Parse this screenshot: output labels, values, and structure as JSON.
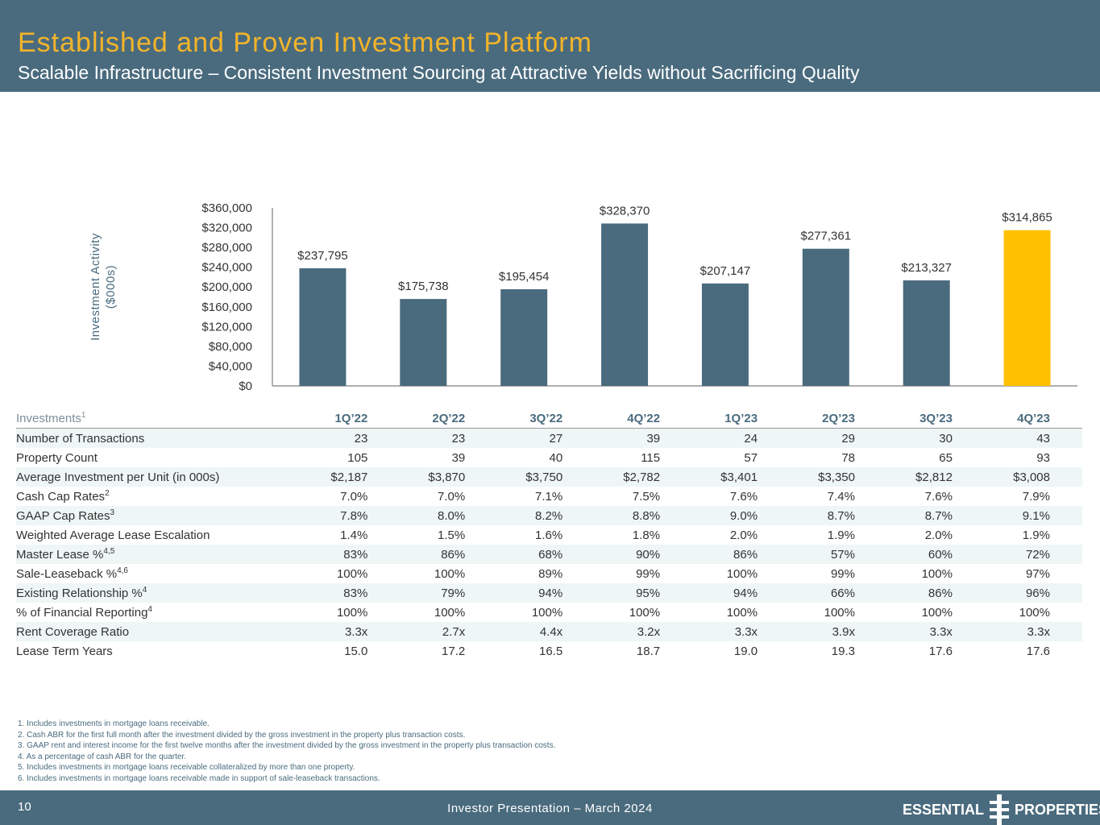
{
  "header": {
    "title": "Established and Proven Investment Platform",
    "subtitle": "Scalable Infrastructure – Consistent Investment Sourcing at Attractive Yields without Sacrificing Quality"
  },
  "chart_data": {
    "type": "bar",
    "categories": [
      "1Q'22",
      "2Q'22",
      "3Q'22",
      "4Q'22",
      "1Q'23",
      "2Q'23",
      "3Q'23",
      "4Q'23"
    ],
    "values": [
      237795,
      175738,
      195454,
      328370,
      207147,
      277361,
      213327,
      314865
    ],
    "data_labels": [
      "$237,795",
      "$175,738",
      "$195,454",
      "$328,370",
      "$207,147",
      "$277,361",
      "$213,327",
      "$314,865"
    ],
    "ylabel": "Investment Activity ($000s)",
    "ylim": [
      0,
      360000
    ],
    "yticks": [
      "$0",
      "$40,000",
      "$80,000",
      "$120,000",
      "$160,000",
      "$200,000",
      "$240,000",
      "$280,000",
      "$320,000",
      "$360,000"
    ],
    "bar_color": "#4a6b7e",
    "highlight_color": "#ffc000",
    "highlight_index": 7
  },
  "table": {
    "header_label": "Investments",
    "header_sup": "1",
    "columns": [
      "1Q’22",
      "2Q’22",
      "3Q’22",
      "4Q’22",
      "1Q’23",
      "2Q’23",
      "3Q’23",
      "4Q’23"
    ],
    "rows": [
      {
        "label": "Number of Transactions",
        "sup": "",
        "values": [
          "23",
          "23",
          "27",
          "39",
          "24",
          "29",
          "30",
          "43"
        ]
      },
      {
        "label": "Property Count",
        "sup": "",
        "values": [
          "105",
          "39",
          "40",
          "115",
          "57",
          "78",
          "65",
          "93"
        ]
      },
      {
        "label": "Average Investment per Unit (in 000s)",
        "sup": "",
        "values": [
          "$2,187",
          "$3,870",
          "$3,750",
          "$2,782",
          "$3,401",
          "$3,350",
          "$2,812",
          "$3,008"
        ]
      },
      {
        "label": "Cash Cap Rates",
        "sup": "2",
        "values": [
          "7.0%",
          "7.0%",
          "7.1%",
          "7.5%",
          "7.6%",
          "7.4%",
          "7.6%",
          "7.9%"
        ]
      },
      {
        "label": "GAAP Cap Rates",
        "sup": "3",
        "values": [
          "7.8%",
          "8.0%",
          "8.2%",
          "8.8%",
          "9.0%",
          "8.7%",
          "8.7%",
          "9.1%"
        ]
      },
      {
        "label": "Weighted Average Lease Escalation",
        "sup": "",
        "values": [
          "1.4%",
          "1.5%",
          "1.6%",
          "1.8%",
          "2.0%",
          "1.9%",
          "2.0%",
          "1.9%"
        ]
      },
      {
        "label": "Master Lease %",
        "sup": "4,5",
        "values": [
          "83%",
          "86%",
          "68%",
          "90%",
          "86%",
          "57%",
          "60%",
          "72%"
        ]
      },
      {
        "label": "Sale-Leaseback %",
        "sup": "4,6",
        "values": [
          "100%",
          "100%",
          "89%",
          "99%",
          "100%",
          "99%",
          "100%",
          "97%"
        ]
      },
      {
        "label": "Existing Relationship %",
        "sup": "4",
        "values": [
          "83%",
          "79%",
          "94%",
          "95%",
          "94%",
          "66%",
          "86%",
          "96%"
        ]
      },
      {
        "label": "% of Financial Reporting",
        "sup": "4",
        "values": [
          "100%",
          "100%",
          "100%",
          "100%",
          "100%",
          "100%",
          "100%",
          "100%"
        ]
      },
      {
        "label": "Rent Coverage Ratio",
        "sup": "",
        "values": [
          "3.3x",
          "2.7x",
          "4.4x",
          "3.2x",
          "3.3x",
          "3.9x",
          "3.3x",
          "3.3x"
        ]
      },
      {
        "label": "Lease Term Years",
        "sup": "",
        "values": [
          "15.0",
          "17.2",
          "16.5",
          "18.7",
          "19.0",
          "19.3",
          "17.6",
          "17.6"
        ]
      }
    ]
  },
  "notes": [
    "1.  Includes investments in mortgage loans receivable.",
    "2.  Cash ABR for the first full month after the investment divided by the gross investment in the property plus transaction costs.",
    "3.  GAAP rent and interest income for the first twelve months after the investment divided by the gross investment in the property plus transaction costs.",
    "4.  As a percentage of cash ABR for the quarter.",
    "5.  Includes investments in mortgage loans receivable collateralized by more than one property.",
    "6.  Includes investments in mortgage loans receivable made in support of sale-leaseback transactions."
  ],
  "footer": {
    "page_number": "10",
    "text": "Investor Presentation – March 2024",
    "logo_left": "ESSENTIAL",
    "logo_right": "PROPERTIES"
  }
}
